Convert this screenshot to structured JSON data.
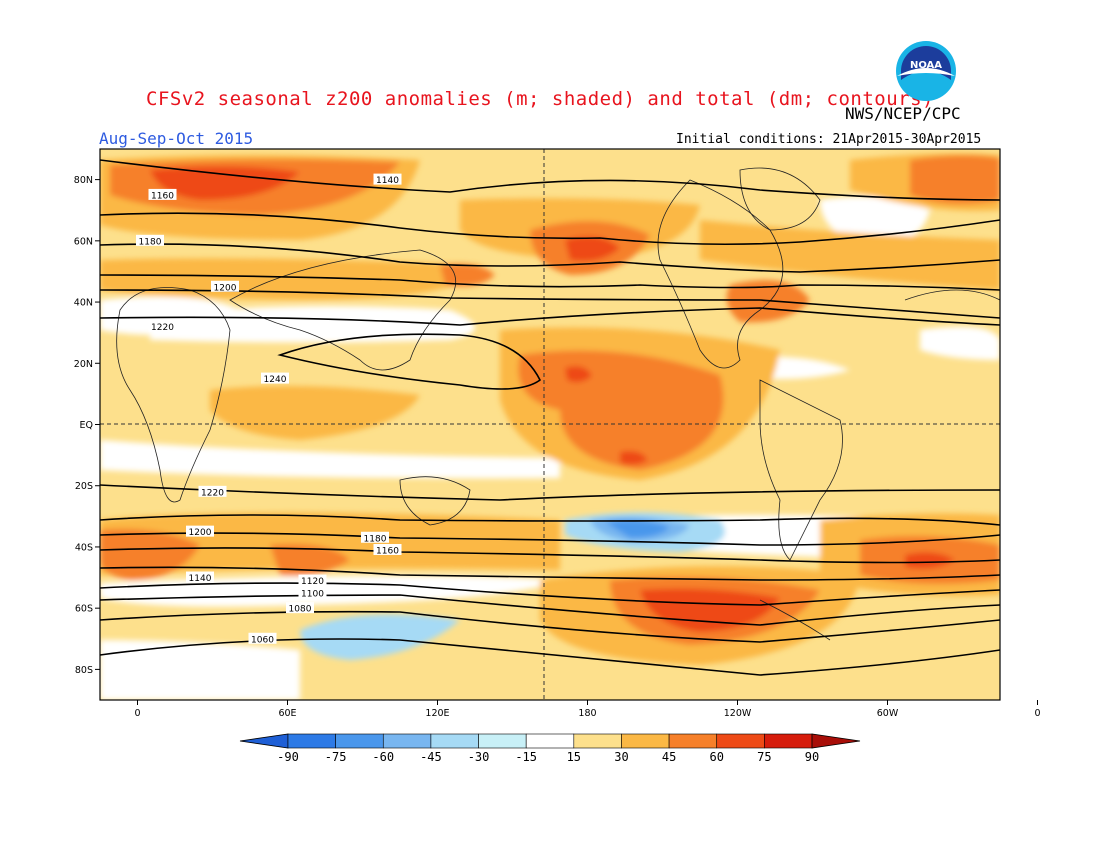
{
  "title": "CFSv2 seasonal z200 anomalies (m; shaded) and total (dm; contours)",
  "agency": "NWS/NCEP/CPC",
  "period": "Aug-Sep-Oct 2015",
  "initial_conditions": "Initial conditions: 21Apr2015-30Apr2015",
  "logo_text": "NOAA",
  "lat_labels": [
    "80N",
    "60N",
    "40N",
    "20N",
    "EQ",
    "20S",
    "40S",
    "60S",
    "80S"
  ],
  "lon_labels": [
    "0",
    "60E",
    "120E",
    "180",
    "120W",
    "60W",
    "0"
  ],
  "colorbar": {
    "labels": [
      "-90",
      "-75",
      "-60",
      "-45",
      "-30",
      "-15",
      "15",
      "30",
      "45",
      "60",
      "75",
      "90"
    ],
    "colors": [
      "#1e5fd6",
      "#2d7ae6",
      "#4a97ec",
      "#78b6f0",
      "#a6daf5",
      "#c8f0f7",
      "#ffffff",
      "#fde08c",
      "#fbb845",
      "#f6802a",
      "#ee4a16",
      "#d61c0c",
      "#a80e08"
    ]
  },
  "contour_labels": [
    "1060",
    "1080",
    "1100",
    "1120",
    "1140",
    "1160",
    "1180",
    "1200",
    "1220",
    "1240"
  ],
  "chart_data": {
    "type": "heatmap",
    "variable": "z200",
    "anomaly_units": "m",
    "contour_units": "dm",
    "contours": [
      {
        "value": 1140,
        "label_lat": 80,
        "label_lon": 100
      },
      {
        "value": 1160,
        "label_lat": 75,
        "label_lon": 10
      },
      {
        "value": 1180,
        "label_lat": 60,
        "label_lon": 5
      },
      {
        "value": 1200,
        "label_lat": 45,
        "label_lon": 35
      },
      {
        "value": 1220,
        "label_lat": 32,
        "label_lon": 10
      },
      {
        "value": 1240,
        "label_lat": 15,
        "label_lon": 55
      },
      {
        "value": 1220,
        "label_lat": -22,
        "label_lon": 30
      },
      {
        "value": 1200,
        "label_lat": -35,
        "label_lon": 25
      },
      {
        "value": 1180,
        "label_lat": -37,
        "label_lon": 95
      },
      {
        "value": 1160,
        "label_lat": -41,
        "label_lon": 100
      },
      {
        "value": 1140,
        "label_lat": -50,
        "label_lon": 25
      },
      {
        "value": 1120,
        "label_lat": -51,
        "label_lon": 70
      },
      {
        "value": 1100,
        "label_lat": -55,
        "label_lon": 70
      },
      {
        "value": 1080,
        "label_lat": -60,
        "label_lon": 65
      },
      {
        "value": 1060,
        "label_lat": -70,
        "label_lon": 50
      }
    ],
    "anomaly_maxima": [
      {
        "lat": 80,
        "lon": 30,
        "value": 60
      },
      {
        "lat": 55,
        "lon": -130,
        "value": 60
      },
      {
        "lat": 15,
        "lon": -145,
        "value": 75
      },
      {
        "lat": -62,
        "lon": -110,
        "value": 75
      },
      {
        "lat": -45,
        "lon": 5,
        "value": 60
      }
    ],
    "anomaly_minima": [
      {
        "lat": -35,
        "lon": -155,
        "value": -60
      },
      {
        "lat": -65,
        "lon": 100,
        "value": -30
      }
    ]
  }
}
